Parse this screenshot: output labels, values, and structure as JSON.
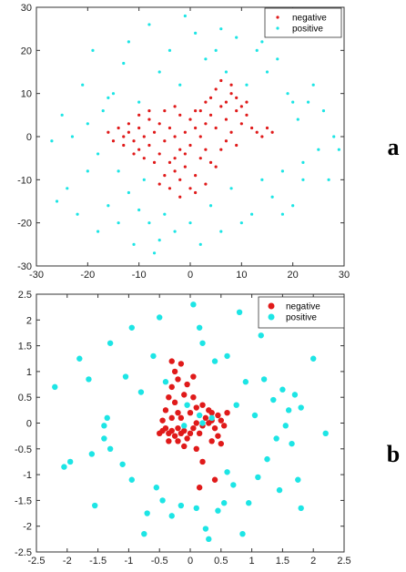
{
  "chart_data": [
    {
      "type": "scatter",
      "panel_label": "a",
      "xlim": [
        -30,
        30
      ],
      "ylim": [
        -30,
        30
      ],
      "xticks": [
        -30,
        -20,
        -10,
        0,
        10,
        20,
        30
      ],
      "yticks": [
        -30,
        -20,
        -10,
        0,
        10,
        20,
        30
      ],
      "grid": false,
      "legend": "top-right",
      "series": [
        {
          "name": "negative",
          "color": "#e01a1a",
          "marker": "point",
          "points": [
            [
              -16,
              1
            ],
            [
              -15,
              -1
            ],
            [
              -14,
              2
            ],
            [
              -13,
              0
            ],
            [
              -12,
              1
            ],
            [
              -11,
              -1
            ],
            [
              -10,
              2
            ],
            [
              -9,
              0
            ],
            [
              -8,
              -2
            ],
            [
              -7,
              1
            ],
            [
              -6,
              3
            ],
            [
              -5,
              -1
            ],
            [
              -4,
              2
            ],
            [
              -3,
              0
            ],
            [
              -2,
              -3
            ],
            [
              -1,
              1
            ],
            [
              0,
              4
            ],
            [
              1,
              2
            ],
            [
              2,
              0
            ],
            [
              3,
              3
            ],
            [
              4,
              5
            ],
            [
              5,
              2
            ],
            [
              6,
              7
            ],
            [
              7,
              4
            ],
            [
              8,
              10
            ],
            [
              9,
              6
            ],
            [
              10,
              3
            ],
            [
              11,
              5
            ],
            [
              12,
              2
            ],
            [
              13,
              1
            ],
            [
              14,
              0
            ],
            [
              15,
              2
            ],
            [
              16,
              1
            ],
            [
              -12,
              3
            ],
            [
              -10,
              -3
            ],
            [
              -8,
              4
            ],
            [
              -6,
              -4
            ],
            [
              -4,
              -6
            ],
            [
              -3,
              -8
            ],
            [
              -2,
              -10
            ],
            [
              -1,
              -7
            ],
            [
              0,
              -12
            ],
            [
              1,
              -9
            ],
            [
              2,
              -5
            ],
            [
              3,
              -3
            ],
            [
              -5,
              -9
            ],
            [
              -6,
              -11
            ],
            [
              -4,
              -12
            ],
            [
              -3,
              -5
            ],
            [
              -1,
              -4
            ],
            [
              0,
              -2
            ],
            [
              2,
              6
            ],
            [
              4,
              9
            ],
            [
              5,
              11
            ],
            [
              6,
              13
            ],
            [
              7,
              8
            ],
            [
              8,
              12
            ],
            [
              9,
              9
            ],
            [
              10,
              7
            ],
            [
              11,
              8
            ],
            [
              3,
              8
            ],
            [
              1,
              6
            ],
            [
              -2,
              5
            ],
            [
              -7,
              -6
            ],
            [
              -9,
              -5
            ],
            [
              -11,
              -4
            ],
            [
              -13,
              -2
            ],
            [
              -2,
              -14
            ],
            [
              1,
              -13
            ],
            [
              3,
              -11
            ],
            [
              5,
              -7
            ],
            [
              6,
              -3
            ],
            [
              7,
              -1
            ],
            [
              8,
              1
            ],
            [
              9,
              -2
            ],
            [
              4,
              -6
            ],
            [
              -8,
              6
            ],
            [
              -10,
              5
            ],
            [
              -5,
              6
            ],
            [
              -3,
              7
            ]
          ]
        },
        {
          "name": "positive",
          "color": "#1de5e5",
          "marker": "point",
          "points": [
            [
              -26,
              -15
            ],
            [
              -27,
              -1
            ],
            [
              -25,
              5
            ],
            [
              -24,
              -12
            ],
            [
              -22,
              -18
            ],
            [
              -21,
              12
            ],
            [
              -20,
              -8
            ],
            [
              -19,
              20
            ],
            [
              -18,
              -22
            ],
            [
              -17,
              6
            ],
            [
              -16,
              -16
            ],
            [
              -15,
              10
            ],
            [
              -14,
              -20
            ],
            [
              -13,
              17
            ],
            [
              -12,
              22
            ],
            [
              -11,
              -25
            ],
            [
              -10,
              8
            ],
            [
              -9,
              -10
            ],
            [
              -8,
              26
            ],
            [
              -7,
              -27
            ],
            [
              -6,
              15
            ],
            [
              -5,
              -18
            ],
            [
              -4,
              20
            ],
            [
              -3,
              -22
            ],
            [
              -2,
              12
            ],
            [
              -1,
              28
            ],
            [
              0,
              -20
            ],
            [
              1,
              24
            ],
            [
              2,
              -25
            ],
            [
              3,
              18
            ],
            [
              4,
              -16
            ],
            [
              5,
              20
            ],
            [
              6,
              -22
            ],
            [
              7,
              15
            ],
            [
              8,
              -12
            ],
            [
              9,
              23
            ],
            [
              10,
              -20
            ],
            [
              11,
              12
            ],
            [
              12,
              -18
            ],
            [
              13,
              20
            ],
            [
              14,
              -10
            ],
            [
              15,
              15
            ],
            [
              16,
              -14
            ],
            [
              17,
              18
            ],
            [
              18,
              -8
            ],
            [
              19,
              10
            ],
            [
              20,
              -16
            ],
            [
              21,
              4
            ],
            [
              22,
              -6
            ],
            [
              23,
              8
            ],
            [
              24,
              12
            ],
            [
              25,
              -3
            ],
            [
              26,
              6
            ],
            [
              27,
              -10
            ],
            [
              28,
              0
            ],
            [
              29,
              -3
            ],
            [
              -23,
              0
            ],
            [
              -20,
              3
            ],
            [
              -18,
              -4
            ],
            [
              -16,
              9
            ],
            [
              -14,
              -8
            ],
            [
              -12,
              -13
            ],
            [
              -10,
              -17
            ],
            [
              -8,
              -20
            ],
            [
              20,
              8
            ],
            [
              22,
              -10
            ],
            [
              18,
              -18
            ],
            [
              14,
              22
            ],
            [
              -6,
              -24
            ],
            [
              6,
              25
            ]
          ]
        }
      ]
    },
    {
      "type": "scatter",
      "panel_label": "b",
      "xlim": [
        -2.5,
        2.5
      ],
      "ylim": [
        -2.5,
        2.5
      ],
      "xticks": [
        -2.5,
        -2,
        -1.5,
        -1,
        -0.5,
        0,
        0.5,
        1,
        1.5,
        2,
        2.5
      ],
      "yticks": [
        -2.5,
        -2,
        -1.5,
        -1,
        -0.5,
        0,
        0.5,
        1,
        1.5,
        2,
        2.5
      ],
      "grid": false,
      "legend": "top-right",
      "series": [
        {
          "name": "negative",
          "color": "#e01a1a",
          "marker": "circle",
          "points": [
            [
              -0.5,
              -0.2
            ],
            [
              -0.45,
              -0.15
            ],
            [
              -0.4,
              -0.1
            ],
            [
              -0.35,
              -0.2
            ],
            [
              -0.3,
              -0.15
            ],
            [
              -0.25,
              -0.25
            ],
            [
              -0.2,
              -0.1
            ],
            [
              -0.15,
              -0.2
            ],
            [
              -0.1,
              -0.15
            ],
            [
              -0.05,
              -0.3
            ],
            [
              0,
              -0.2
            ],
            [
              0.05,
              -0.1
            ],
            [
              0.1,
              0
            ],
            [
              0.15,
              -0.2
            ],
            [
              0.2,
              -0.05
            ],
            [
              0.25,
              0.1
            ],
            [
              0.3,
              0
            ],
            [
              0.35,
              0.05
            ],
            [
              0.4,
              -0.1
            ],
            [
              0.45,
              0.15
            ],
            [
              0.5,
              0.05
            ],
            [
              0.55,
              -0.05
            ],
            [
              -0.3,
              1.2
            ],
            [
              -0.25,
              1.0
            ],
            [
              -0.2,
              0.85
            ],
            [
              -0.3,
              0.7
            ],
            [
              -0.35,
              0.5
            ],
            [
              -0.25,
              0.4
            ],
            [
              -0.2,
              0.2
            ],
            [
              -0.3,
              0.1
            ],
            [
              -0.1,
              0.55
            ],
            [
              -0.05,
              0.75
            ],
            [
              0.05,
              0.5
            ],
            [
              0.1,
              0.3
            ],
            [
              0.0,
              0.2
            ],
            [
              -0.35,
              -0.35
            ],
            [
              -0.1,
              -0.45
            ],
            [
              0.1,
              -0.5
            ],
            [
              0.35,
              -0.35
            ],
            [
              0.2,
              -0.75
            ],
            [
              0.4,
              -1.1
            ],
            [
              0.15,
              -1.25
            ],
            [
              -0.4,
              0.25
            ],
            [
              -0.15,
              0.1
            ],
            [
              0.3,
              0.25
            ],
            [
              0.2,
              0.35
            ],
            [
              -0.45,
              0.05
            ],
            [
              0.45,
              -0.25
            ],
            [
              0.35,
              0.2
            ],
            [
              -0.2,
              -0.35
            ],
            [
              0.05,
              0.9
            ],
            [
              -0.15,
              1.15
            ],
            [
              0.6,
              0.2
            ],
            [
              0.5,
              -0.4
            ]
          ]
        },
        {
          "name": "positive",
          "color": "#1de5e5",
          "marker": "circle",
          "points": [
            [
              -2.2,
              0.7
            ],
            [
              -2.05,
              -0.85
            ],
            [
              -1.95,
              -0.75
            ],
            [
              -1.8,
              1.25
            ],
            [
              -1.65,
              0.85
            ],
            [
              -1.6,
              -0.6
            ],
            [
              -1.55,
              -1.6
            ],
            [
              -1.4,
              -0.05
            ],
            [
              -1.4,
              -0.3
            ],
            [
              -1.35,
              0.1
            ],
            [
              -1.3,
              -0.5
            ],
            [
              -1.3,
              1.55
            ],
            [
              -1.1,
              -0.8
            ],
            [
              -1.05,
              0.9
            ],
            [
              -0.95,
              1.85
            ],
            [
              -0.95,
              -1.1
            ],
            [
              -0.8,
              0.6
            ],
            [
              -0.75,
              -2.15
            ],
            [
              -0.7,
              -1.75
            ],
            [
              -0.6,
              1.3
            ],
            [
              -0.55,
              -1.25
            ],
            [
              -0.5,
              2.05
            ],
            [
              -0.45,
              -1.5
            ],
            [
              -0.4,
              0.8
            ],
            [
              -0.3,
              -1.8
            ],
            [
              -0.15,
              -1.6
            ],
            [
              0.05,
              2.3
            ],
            [
              0.1,
              -1.65
            ],
            [
              0.15,
              1.85
            ],
            [
              0.2,
              1.55
            ],
            [
              0.25,
              -2.05
            ],
            [
              0.3,
              -2.25
            ],
            [
              0.4,
              1.2
            ],
            [
              0.45,
              -1.7
            ],
            [
              0.55,
              -1.55
            ],
            [
              0.6,
              1.3
            ],
            [
              0.6,
              -0.95
            ],
            [
              0.7,
              -1.2
            ],
            [
              0.75,
              0.35
            ],
            [
              0.8,
              2.15
            ],
            [
              0.85,
              -2.15
            ],
            [
              0.9,
              0.8
            ],
            [
              0.95,
              -1.55
            ],
            [
              1.05,
              0.15
            ],
            [
              1.1,
              -1.05
            ],
            [
              1.15,
              1.7
            ],
            [
              1.2,
              0.85
            ],
            [
              1.25,
              -0.7
            ],
            [
              1.35,
              0.45
            ],
            [
              1.4,
              -0.3
            ],
            [
              1.45,
              -1.3
            ],
            [
              1.5,
              0.65
            ],
            [
              1.55,
              -0.05
            ],
            [
              1.6,
              0.25
            ],
            [
              1.65,
              -0.4
            ],
            [
              1.7,
              0.55
            ],
            [
              1.75,
              -1.1
            ],
            [
              1.8,
              0.3
            ],
            [
              1.8,
              -1.65
            ],
            [
              2.0,
              1.25
            ],
            [
              2.2,
              -0.2
            ],
            [
              -0.05,
              0.35
            ],
            [
              0.2,
              0.0
            ],
            [
              0.35,
              0.1
            ],
            [
              -0.1,
              -0.05
            ],
            [
              0.15,
              0.15
            ]
          ]
        }
      ]
    }
  ]
}
